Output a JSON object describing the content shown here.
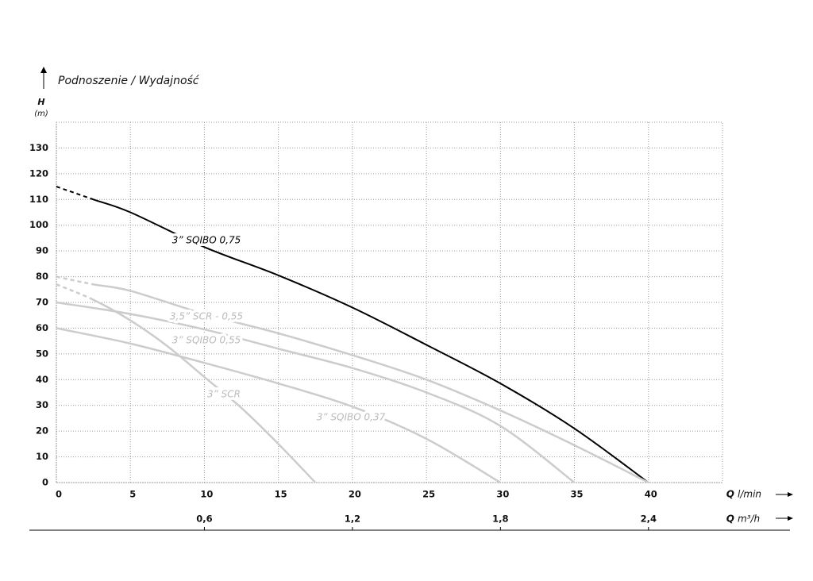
{
  "chart_data": {
    "type": "line",
    "title": "Podnoszenie / Wydajność",
    "y_label": "H",
    "y_unit": "(m)",
    "x_label": "Q",
    "x_unit": "l/min",
    "x2_label": "Q",
    "x2_unit": "m³/h",
    "xlim": [
      0,
      45
    ],
    "xticks": [
      0,
      5,
      10,
      15,
      20,
      25,
      30,
      35,
      40
    ],
    "x2lim": [
      0,
      2.7
    ],
    "x2ticks": [
      {
        "value": 0.6,
        "label": "0,6"
      },
      {
        "value": 1.2,
        "label": "1,2"
      },
      {
        "value": 1.8,
        "label": "1,8"
      },
      {
        "value": 2.4,
        "label": "2,4"
      }
    ],
    "ylim": [
      0,
      140
    ],
    "yticks": [
      0,
      10,
      20,
      30,
      40,
      50,
      60,
      70,
      80,
      90,
      100,
      110,
      120,
      130
    ],
    "grid": true,
    "series": [
      {
        "name": "3” SQIBO 0,75",
        "color": "#000000",
        "dashed_to": 2.5,
        "x": [
          0,
          2.5,
          5,
          10,
          15,
          20,
          25,
          30,
          35,
          40
        ],
        "values": [
          115,
          110,
          105,
          91.5,
          80.5,
          68,
          53.5,
          38.5,
          21,
          0
        ]
      },
      {
        "name": "3,5” SCR - 0,55",
        "color": "#cccccc",
        "dashed_to": 2.5,
        "x": [
          0,
          2.5,
          5,
          10,
          15,
          20,
          25,
          30,
          35,
          40
        ],
        "values": [
          80,
          77,
          74.5,
          65.5,
          58,
          49.5,
          40,
          28,
          14.5,
          0
        ]
      },
      {
        "name": "3” SQIBO 0,55",
        "color": "#cccccc",
        "x": [
          0,
          5,
          10,
          15,
          20,
          25,
          30,
          35
        ],
        "values": [
          70,
          65.5,
          59.5,
          52,
          44.5,
          35,
          22,
          0
        ]
      },
      {
        "name": "3” SCR",
        "color": "#cccccc",
        "dashed_to": 2.5,
        "x": [
          0,
          2.5,
          5,
          7.5,
          10,
          12.5,
          15,
          17.5
        ],
        "values": [
          77,
          71,
          63,
          53,
          41,
          29,
          15,
          0
        ]
      },
      {
        "name": "3” SQIBO 0,37",
        "color": "#cccccc",
        "x": [
          0,
          5,
          10,
          15,
          20,
          25,
          30
        ],
        "values": [
          60,
          54,
          46.5,
          38.5,
          29.5,
          17,
          0
        ]
      }
    ]
  }
}
